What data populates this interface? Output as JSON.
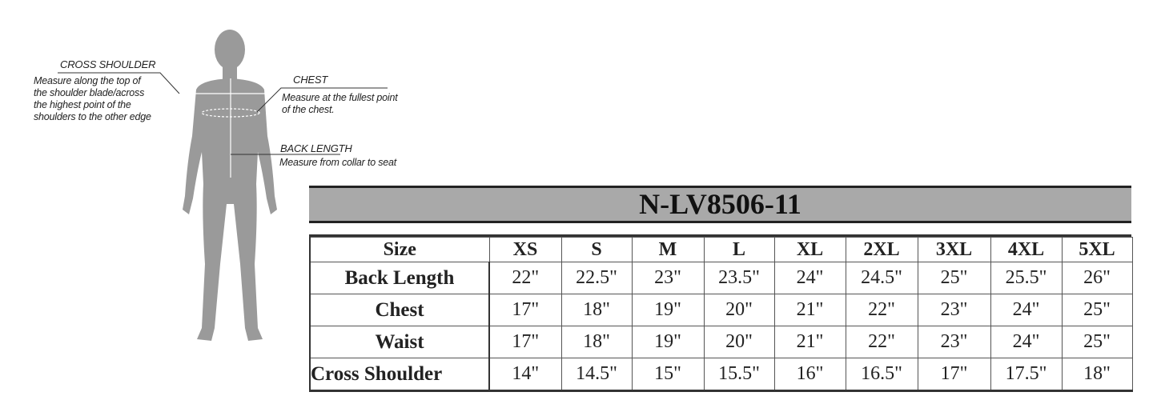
{
  "guide": {
    "cross_shoulder": {
      "title": "CROSS SHOULDER",
      "lines": [
        "Measure along the top of",
        "the shoulder blade/across",
        "the highest point of the",
        "shoulders to the other edge"
      ]
    },
    "chest": {
      "title": "CHEST",
      "lines": [
        "Measure at the fullest point",
        "of the chest."
      ]
    },
    "back_length": {
      "title": "BACK LENGTH",
      "lines": [
        "Measure from collar to seat"
      ]
    }
  },
  "table": {
    "title": "N-LV8506-11",
    "title_bg": "#a9a9a9",
    "header": [
      "Size",
      "XS",
      "S",
      "M",
      "L",
      "XL",
      "2XL",
      "3XL",
      "4XL",
      "5XL"
    ],
    "rows": [
      {
        "label": "Back Length",
        "values": [
          "22\"",
          "22.5\"",
          "23\"",
          "23.5\"",
          "24\"",
          "24.5\"",
          "25\"",
          "25.5\"",
          "26\""
        ]
      },
      {
        "label": "Chest",
        "values": [
          "17\"",
          "18\"",
          "19\"",
          "20\"",
          "21\"",
          "22\"",
          "23\"",
          "24\"",
          "25\""
        ]
      },
      {
        "label": "Waist",
        "values": [
          "17\"",
          "18\"",
          "19\"",
          "20\"",
          "21\"",
          "22\"",
          "23\"",
          "24\"",
          "25\""
        ]
      },
      {
        "label": "Cross Shoulder",
        "values": [
          "14\"",
          "14.5\"",
          "15\"",
          "15.5\"",
          "16\"",
          "16.5\"",
          "17\"",
          "17.5\"",
          "18\""
        ]
      }
    ]
  }
}
